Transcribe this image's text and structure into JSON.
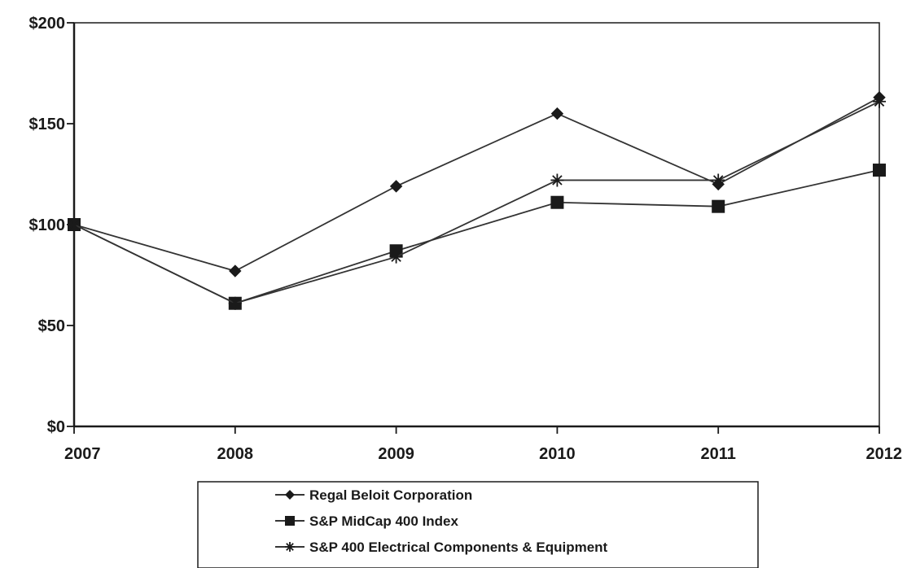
{
  "chart_data": {
    "type": "line",
    "title": "",
    "xlabel": "",
    "ylabel": "",
    "categories": [
      "2007",
      "2008",
      "2009",
      "2010",
      "2011",
      "2012"
    ],
    "y_ticks": [
      "$0",
      "$50",
      "$100",
      "$150",
      "$200"
    ],
    "ylim": [
      0,
      200
    ],
    "grid": false,
    "legend_position": "bottom-center",
    "series": [
      {
        "name": "Regal Beloit Corporation",
        "marker": "diamond",
        "color": "#333333",
        "values": [
          100,
          77,
          119,
          155,
          120,
          163
        ]
      },
      {
        "name": "S&P MidCap 400 Index",
        "marker": "square",
        "color": "#333333",
        "values": [
          100,
          61,
          87,
          111,
          109,
          127
        ]
      },
      {
        "name": "S&P 400 Electrical Components & Equipment",
        "marker": "asterisk",
        "color": "#333333",
        "values": [
          100,
          61,
          84,
          122,
          122,
          161
        ]
      }
    ]
  }
}
